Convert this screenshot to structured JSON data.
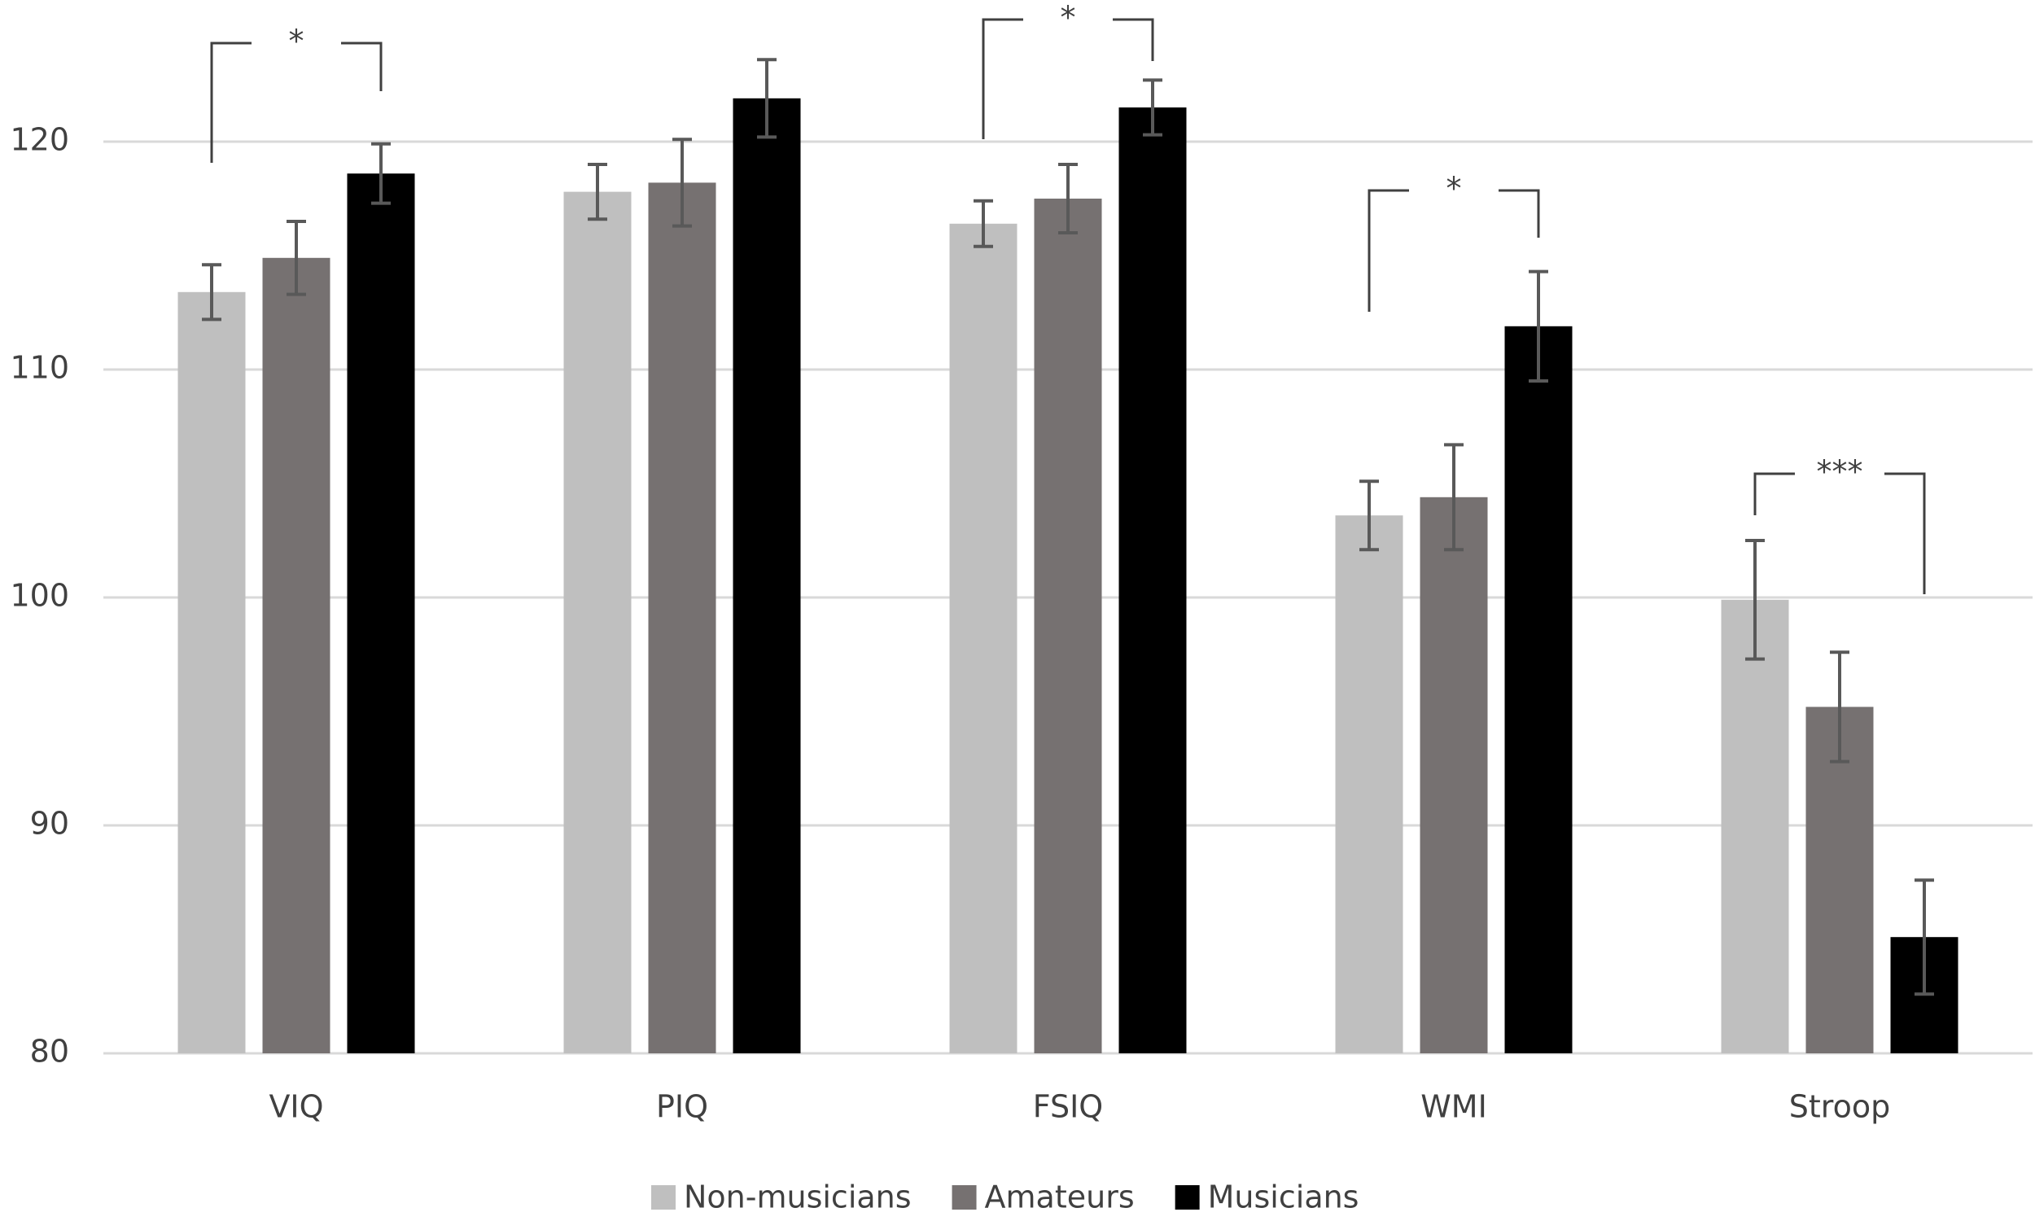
{
  "chart_data": {
    "type": "bar",
    "categories": [
      "VIQ",
      "PIQ",
      "FSIQ",
      "WMI",
      "Stroop"
    ],
    "series": [
      {
        "name": "Non-musicians",
        "color": "#bfbfbf",
        "values": [
          113.4,
          117.8,
          116.4,
          103.6,
          99.9
        ],
        "errors": [
          1.2,
          1.2,
          1.0,
          1.5,
          2.6
        ]
      },
      {
        "name": "Amateurs",
        "color": "#767171",
        "values": [
          114.9,
          118.2,
          117.5,
          104.4,
          95.2
        ],
        "errors": [
          1.6,
          1.9,
          1.5,
          2.3,
          2.4
        ]
      },
      {
        "name": "Musicians",
        "color": "#000000",
        "values": [
          118.6,
          121.9,
          121.5,
          111.9,
          85.1
        ],
        "errors": [
          1.3,
          1.7,
          1.2,
          2.4,
          2.5
        ]
      }
    ],
    "ylim": [
      80,
      126
    ],
    "yticks": [
      80,
      90,
      100,
      110,
      120
    ],
    "grid": true,
    "annotations": [
      {
        "text": "*"
      },
      {
        "text": "*"
      },
      {
        "text": "*"
      },
      {
        "text": "***"
      }
    ]
  }
}
